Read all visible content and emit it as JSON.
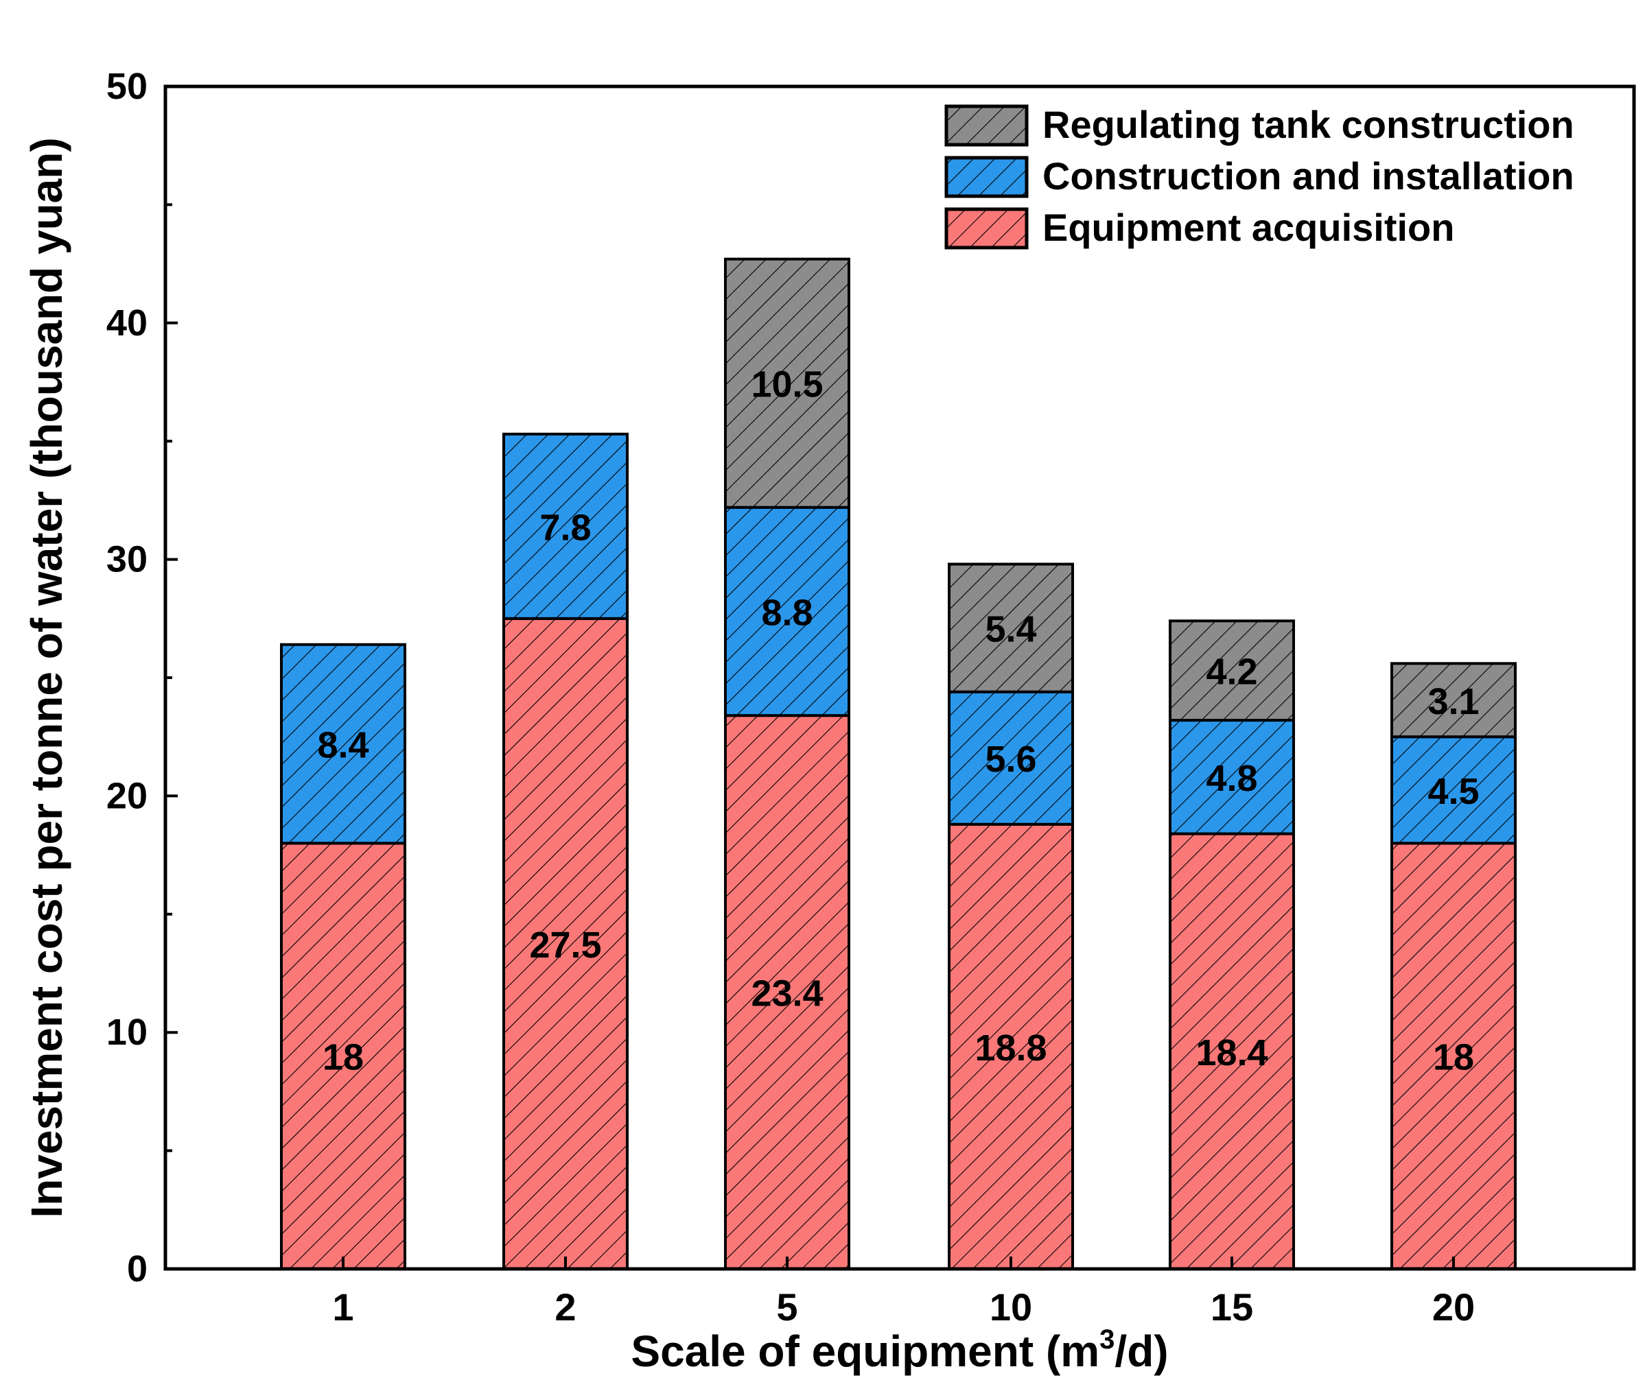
{
  "chart_data": {
    "type": "bar",
    "stacked": true,
    "title": "",
    "xlabel": "Scale of equipment (m3/d)",
    "xlabel_parts": {
      "main": "Scale of equipment (m",
      "sup": "3",
      "tail": "/d)"
    },
    "ylabel": "Investment cost per tonne of water (thousand yuan)",
    "ylim": [
      0,
      50
    ],
    "yticks": [
      0,
      10,
      20,
      30,
      40,
      50
    ],
    "categories": [
      "1",
      "2",
      "5",
      "10",
      "15",
      "20"
    ],
    "legend_placement": "top-right",
    "grid": false,
    "series": [
      {
        "name": "Equipment acquisition",
        "color": "#fa7878",
        "values": [
          18,
          27.5,
          23.4,
          18.8,
          18.4,
          18
        ]
      },
      {
        "name": "Construction and installation",
        "color": "#2b97eb",
        "values": [
          8.4,
          7.8,
          8.8,
          5.6,
          4.8,
          4.5
        ]
      },
      {
        "name": "Regulating tank construction",
        "color": "#8c8c8c",
        "values": [
          null,
          null,
          10.5,
          5.4,
          4.2,
          3.1
        ]
      }
    ],
    "legend_order": [
      2,
      1,
      0
    ]
  }
}
